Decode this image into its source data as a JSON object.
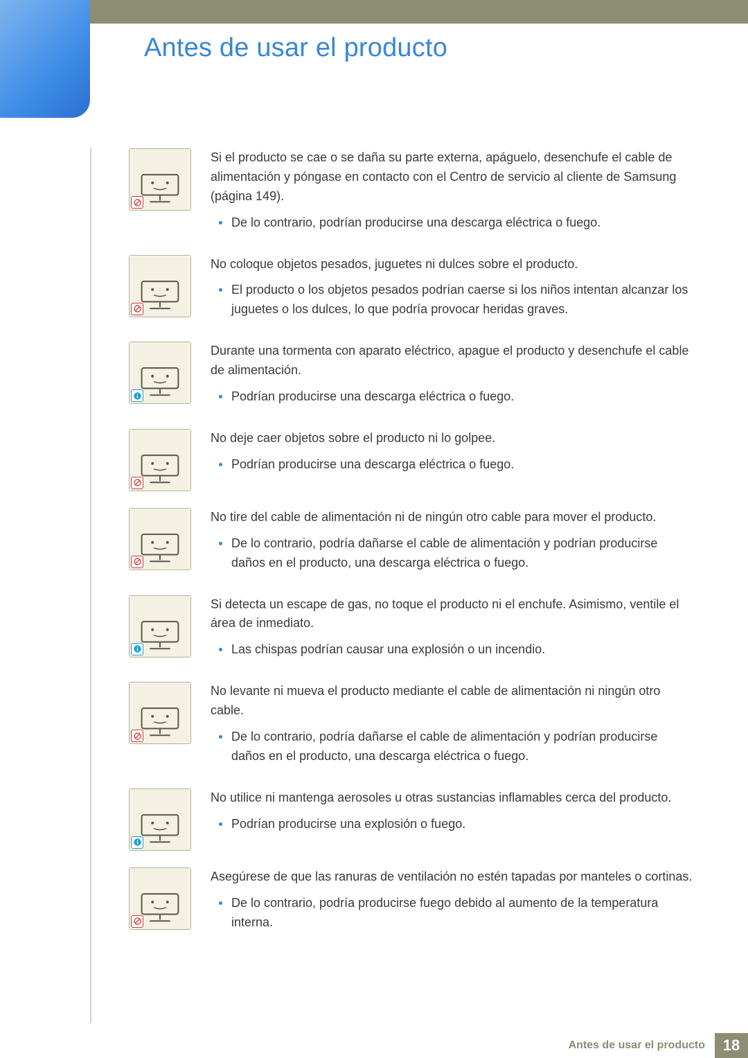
{
  "colors": {
    "accent_blue": "#3a86d6",
    "olive": "#8c8d72",
    "thumb_bg": "#f4f1e4",
    "thumb_border": "#b5b09a",
    "prohibit": "#d23a3a",
    "info": "#1e9ed8",
    "body_text": "#3a3a3a"
  },
  "heading": "Antes de usar el producto",
  "footer": {
    "section": "Antes de usar el producto",
    "page": "18"
  },
  "items": [
    {
      "badge": "prohibit",
      "intro": "Si el producto se cae o se daña su parte externa, apáguelo, desenchufe el cable de alimentación y póngase en contacto con el Centro de servicio al cliente de Samsung (página 149).",
      "bullets": [
        "De lo contrario, podrían producirse una descarga eléctrica o fuego."
      ]
    },
    {
      "badge": "prohibit",
      "intro": "No coloque objetos pesados, juguetes ni dulces sobre el producto.",
      "bullets": [
        "El producto o los objetos pesados podrían caerse si los niños intentan alcanzar los juguetes o los dulces, lo que podría provocar heridas graves."
      ]
    },
    {
      "badge": "info",
      "intro": "Durante una tormenta con aparato eléctrico, apague el producto y desenchufe el cable de alimentación.",
      "bullets": [
        "Podrían producirse una descarga eléctrica o fuego."
      ]
    },
    {
      "badge": "prohibit",
      "intro": "No deje caer objetos sobre el producto ni lo golpee.",
      "bullets": [
        "Podrían producirse una descarga eléctrica o fuego."
      ]
    },
    {
      "badge": "prohibit",
      "intro": "No tire del cable de alimentación ni de ningún otro cable para mover el producto.",
      "bullets": [
        "De lo contrario, podría dañarse el cable de alimentación y podrían producirse daños en el producto, una descarga eléctrica o fuego."
      ]
    },
    {
      "badge": "info",
      "intro": "Si detecta un escape de gas, no toque el producto ni el enchufe. Asimismo, ventile el área de inmediato.",
      "bullets": [
        "Las chispas podrían causar una explosión o un incendio."
      ]
    },
    {
      "badge": "prohibit",
      "intro": "No levante ni mueva el producto mediante el cable de alimentación ni ningún otro cable.",
      "bullets": [
        "De lo contrario, podría dañarse el cable de alimentación y podrían producirse daños en el producto, una descarga eléctrica o fuego."
      ]
    },
    {
      "badge": "info",
      "intro": "No utilice ni mantenga aerosoles u otras sustancias inflamables cerca del producto.",
      "bullets": [
        "Podrían producirse una explosión o fuego."
      ]
    },
    {
      "badge": "prohibit",
      "intro": "Asegúrese de que las ranuras de ventilación no estén tapadas por manteles o cortinas.",
      "bullets": [
        "De lo contrario, podría producirse fuego debido al aumento de la temperatura interna."
      ]
    }
  ]
}
